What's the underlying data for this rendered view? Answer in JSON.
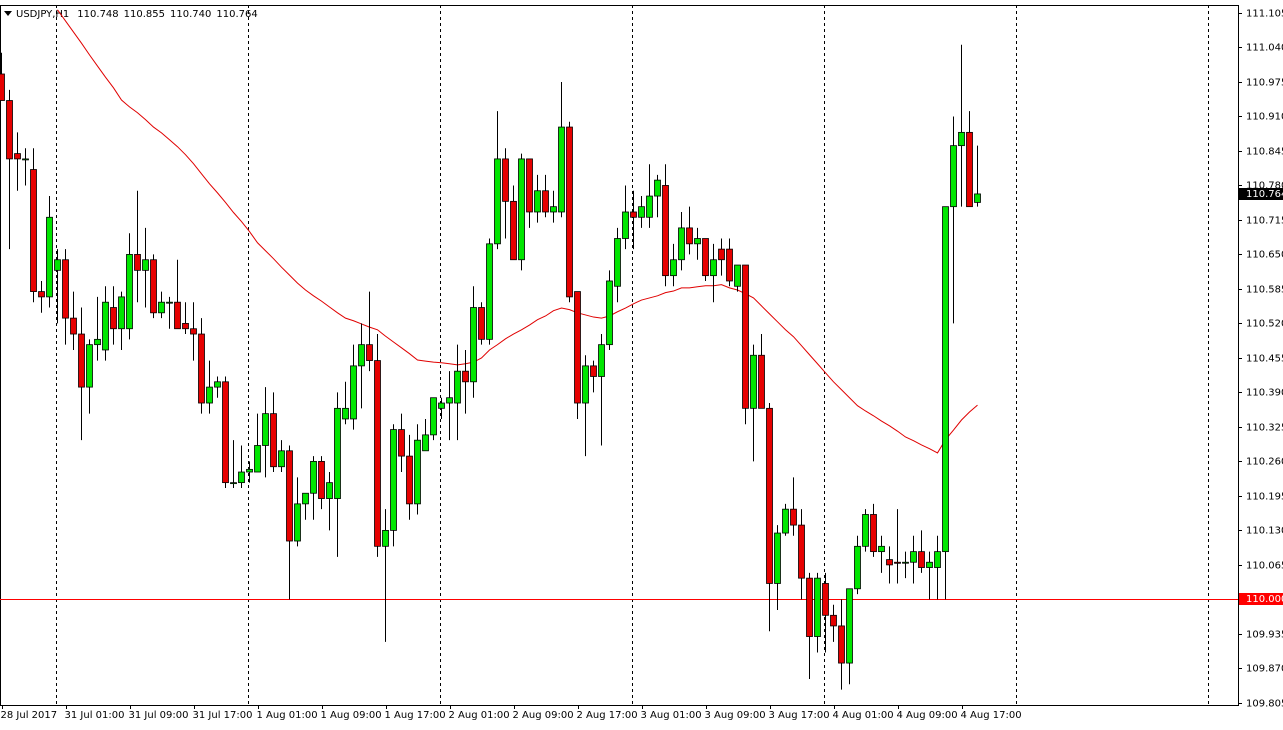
{
  "chart_data": {
    "type": "candlestick",
    "symbol": "USDJPY,H1",
    "quote": [
      "110.748",
      "110.855",
      "110.740",
      "110.764"
    ],
    "categories": [
      "28 Jul 2017",
      null,
      null,
      null,
      null,
      null,
      null,
      null,
      "31 Jul 01:00",
      null,
      null,
      null,
      null,
      null,
      null,
      null,
      "31 Jul 09:00",
      null,
      null,
      null,
      null,
      null,
      null,
      null,
      "31 Jul 17:00",
      null,
      null,
      null,
      null,
      null,
      null,
      null,
      "1 Aug 01:00",
      null,
      null,
      null,
      null,
      null,
      null,
      null,
      "1 Aug 09:00",
      null,
      null,
      null,
      null,
      null,
      null,
      null,
      "1 Aug 17:00",
      null,
      null,
      null,
      null,
      null,
      null,
      null,
      "2 Aug 01:00",
      null,
      null,
      null,
      null,
      null,
      null,
      null,
      "2 Aug 09:00",
      null,
      null,
      null,
      null,
      null,
      null,
      null,
      "2 Aug 17:00",
      null,
      null,
      null,
      null,
      null,
      null,
      null,
      "3 Aug 01:00",
      null,
      null,
      null,
      null,
      null,
      null,
      null,
      "3 Aug 09:00",
      null,
      null,
      null,
      null,
      null,
      null,
      null,
      "3 Aug 17:00",
      null,
      null,
      null,
      null,
      null,
      null,
      null,
      "4 Aug 01:00",
      null,
      null,
      null,
      null,
      null,
      null,
      null,
      "4 Aug 09:00",
      null,
      null,
      null,
      null,
      null,
      null,
      null,
      "4 Aug 17:00",
      null,
      null
    ],
    "open": [
      110.99,
      110.94,
      110.84,
      110.83,
      110.81,
      110.58,
      110.57,
      110.62,
      110.64,
      110.53,
      110.5,
      110.4,
      110.48,
      110.47,
      110.55,
      110.51,
      110.51,
      110.65,
      110.62,
      110.64,
      110.54,
      110.56,
      110.56,
      110.52,
      110.51,
      110.5,
      110.37,
      110.4,
      110.41,
      110.22,
      110.22,
      110.24,
      110.24,
      110.29,
      110.35,
      110.25,
      110.28,
      110.11,
      110.18,
      110.2,
      110.26,
      110.19,
      110.19,
      110.34,
      110.34,
      110.44,
      110.48,
      110.45,
      110.1,
      110.13,
      110.32,
      110.27,
      110.18,
      110.28,
      110.31,
      110.36,
      110.37,
      110.37,
      110.43,
      110.41,
      110.55,
      110.49,
      110.67,
      110.83,
      110.75,
      110.64,
      110.83,
      110.73,
      110.77,
      110.73,
      110.73,
      110.89,
      110.58,
      110.37,
      110.44,
      110.42,
      110.48,
      110.59,
      110.68,
      110.73,
      110.72,
      110.72,
      110.76,
      110.78,
      110.61,
      110.64,
      110.7,
      110.67,
      110.68,
      110.61,
      110.66,
      110.66,
      110.59,
      110.63,
      110.36,
      110.46,
      110.36,
      110.03,
      110.125,
      110.17,
      110.14,
      110.04,
      109.93,
      110.03,
      109.97,
      109.95,
      109.88,
      110.02,
      110.1,
      110.16,
      110.09,
      110.075,
      110.07,
      110.07,
      110.07,
      110.09,
      110.06,
      110.06,
      110.09,
      110.74,
      110.855,
      110.88,
      110.748
    ],
    "high": [
      111.03,
      110.96,
      110.88,
      110.85,
      110.85,
      110.6,
      110.76,
      110.66,
      110.66,
      110.58,
      110.55,
      110.49,
      110.57,
      110.59,
      110.59,
      110.58,
      110.69,
      110.77,
      110.7,
      110.65,
      110.58,
      110.57,
      110.64,
      110.56,
      110.56,
      110.53,
      110.45,
      110.42,
      110.42,
      110.3,
      110.29,
      110.26,
      110.35,
      110.4,
      110.39,
      110.3,
      110.29,
      110.23,
      110.2,
      110.27,
      110.27,
      110.24,
      110.39,
      110.41,
      110.48,
      110.52,
      110.58,
      110.5,
      110.17,
      110.33,
      110.35,
      110.31,
      110.33,
      110.34,
      110.38,
      110.38,
      110.43,
      110.48,
      110.47,
      110.59,
      110.56,
      110.68,
      110.92,
      110.85,
      110.78,
      110.84,
      110.83,
      110.8,
      110.8,
      110.77,
      110.975,
      110.9,
      110.58,
      110.46,
      110.45,
      110.5,
      110.62,
      110.7,
      110.78,
      110.77,
      110.76,
      110.82,
      110.8,
      110.82,
      110.67,
      110.73,
      110.74,
      110.7,
      110.68,
      110.67,
      110.68,
      110.68,
      110.63,
      110.63,
      110.48,
      110.5,
      110.37,
      110.14,
      110.18,
      110.23,
      110.17,
      110.05,
      110.05,
      110.05,
      109.99,
      110.0,
      110.02,
      110.12,
      110.17,
      110.18,
      110.12,
      110.1,
      110.17,
      110.09,
      110.12,
      110.13,
      110.09,
      110.12,
      110.74,
      110.91,
      111.045,
      110.92,
      110.855
    ],
    "low": [
      110.95,
      110.66,
      110.77,
      110.78,
      110.56,
      110.54,
      110.55,
      110.52,
      110.48,
      110.47,
      110.3,
      110.35,
      110.45,
      110.45,
      110.48,
      110.47,
      110.49,
      110.56,
      110.55,
      110.53,
      110.53,
      110.51,
      110.51,
      110.5,
      110.45,
      110.35,
      110.35,
      110.38,
      110.21,
      110.21,
      110.21,
      110.22,
      110.24,
      110.23,
      110.24,
      110.24,
      110.0,
      110.1,
      110.15,
      110.15,
      110.17,
      110.13,
      110.08,
      110.33,
      110.32,
      110.36,
      110.43,
      110.08,
      109.92,
      110.1,
      110.24,
      110.15,
      110.16,
      110.28,
      110.3,
      110.34,
      110.3,
      110.3,
      110.35,
      110.38,
      110.48,
      110.48,
      110.66,
      110.68,
      110.64,
      110.62,
      110.7,
      110.71,
      110.72,
      110.71,
      110.72,
      110.56,
      110.34,
      110.27,
      110.39,
      110.29,
      110.47,
      110.56,
      110.66,
      110.66,
      110.7,
      110.7,
      110.72,
      110.59,
      110.59,
      110.62,
      110.65,
      110.64,
      110.6,
      110.56,
      110.61,
      110.59,
      110.58,
      110.33,
      110.26,
      110.36,
      109.94,
      109.98,
      110.12,
      110.12,
      110.0,
      109.85,
      109.9,
      109.9,
      109.92,
      109.83,
      109.84,
      110.01,
      110.09,
      110.08,
      110.05,
      110.03,
      110.03,
      110.04,
      110.03,
      110.05,
      110.0,
      110.0,
      110.0,
      110.52,
      110.74,
      110.74,
      110.74
    ],
    "close": [
      110.94,
      110.83,
      110.83,
      110.83,
      110.58,
      110.57,
      110.72,
      110.64,
      110.53,
      110.5,
      110.4,
      110.48,
      110.49,
      110.56,
      110.51,
      110.57,
      110.65,
      110.62,
      110.64,
      110.54,
      110.56,
      110.56,
      110.51,
      110.51,
      110.5,
      110.37,
      110.4,
      110.41,
      110.22,
      110.22,
      110.24,
      110.245,
      110.29,
      110.35,
      110.25,
      110.28,
      110.11,
      110.18,
      110.2,
      110.26,
      110.19,
      110.22,
      110.36,
      110.36,
      110.44,
      110.48,
      110.45,
      110.1,
      110.13,
      110.32,
      110.27,
      110.18,
      110.3,
      110.31,
      110.38,
      110.37,
      110.38,
      110.43,
      110.41,
      110.55,
      110.49,
      110.67,
      110.83,
      110.75,
      110.64,
      110.83,
      110.73,
      110.77,
      110.73,
      110.74,
      110.89,
      110.57,
      110.37,
      110.44,
      110.42,
      110.48,
      110.6,
      110.68,
      110.73,
      110.72,
      110.74,
      110.76,
      110.79,
      110.61,
      110.64,
      110.7,
      110.67,
      110.68,
      110.61,
      110.64,
      110.64,
      110.6,
      110.63,
      110.36,
      110.46,
      110.36,
      110.03,
      110.125,
      110.17,
      110.14,
      110.04,
      109.93,
      110.04,
      109.97,
      109.95,
      109.88,
      110.02,
      110.1,
      110.16,
      110.09,
      110.1,
      110.065,
      110.068,
      110.07,
      110.09,
      110.06,
      110.07,
      110.09,
      110.74,
      110.855,
      110.88,
      110.74,
      110.764
    ],
    "up_color": "#00e600",
    "down_color": "#e60000",
    "wick_color": "#000000",
    "ma": {
      "color": "#e00000",
      "values": [
        null,
        null,
        null,
        null,
        null,
        null,
        null,
        111.111,
        111.09,
        111.069,
        111.048,
        111.026,
        111.005,
        110.984,
        110.964,
        110.941,
        110.928,
        110.917,
        110.904,
        110.89,
        110.879,
        110.866,
        110.853,
        110.838,
        110.821,
        110.802,
        110.783,
        110.766,
        110.748,
        110.729,
        110.712,
        110.693,
        110.672,
        110.657,
        110.642,
        110.626,
        110.611,
        110.596,
        110.583,
        110.572,
        110.562,
        110.551,
        110.54,
        110.53,
        110.525,
        110.519,
        110.513,
        110.508,
        110.496,
        110.485,
        110.474,
        110.463,
        110.451,
        110.449,
        110.447,
        110.446,
        110.444,
        110.442,
        110.444,
        110.447,
        110.455,
        110.47,
        110.48,
        110.491,
        110.5,
        110.508,
        110.517,
        110.527,
        110.534,
        110.544,
        110.549,
        110.546,
        110.54,
        110.536,
        110.532,
        110.53,
        110.534,
        110.542,
        110.549,
        110.557,
        110.564,
        110.568,
        110.572,
        110.578,
        110.581,
        110.587,
        110.587,
        110.589,
        110.591,
        110.591,
        110.593,
        110.587,
        110.583,
        110.576,
        110.568,
        110.553,
        110.538,
        110.523,
        110.508,
        110.495,
        110.478,
        110.461,
        110.444,
        110.427,
        110.41,
        110.395,
        110.38,
        110.365,
        110.355,
        110.346,
        110.336,
        110.327,
        110.317,
        110.306,
        110.299,
        110.291,
        110.284,
        110.276,
        110.301,
        110.319,
        110.338,
        110.353,
        110.366
      ]
    },
    "hline": {
      "value": 110.0,
      "label": "110.000",
      "color": "#ff0000"
    },
    "last_price": {
      "value": 110.764,
      "label": "110.764"
    },
    "ylim": [
      109.801,
      111.12
    ],
    "yticks": [
      111.105,
      {
        "value": 111.04,
        "label": "111.040"
      },
      110.975,
      {
        "value": 110.91,
        "label": "110.910"
      },
      110.845,
      {
        "value": 110.78,
        "label": "110.780"
      },
      110.715,
      {
        "value": 110.65,
        "label": "110.650"
      },
      110.585,
      {
        "value": 110.52,
        "label": "110.520"
      },
      110.455,
      {
        "value": 110.39,
        "label": "110.390"
      },
      110.325,
      {
        "value": 110.26,
        "label": "110.260"
      },
      110.195,
      {
        "value": 110.13,
        "label": "110.130"
      },
      110.065,
      {
        "value": 110.0,
        "label": "110.000"
      },
      109.935,
      {
        "value": 109.87,
        "label": "109.870"
      },
      109.805
    ],
    "grid": false
  }
}
